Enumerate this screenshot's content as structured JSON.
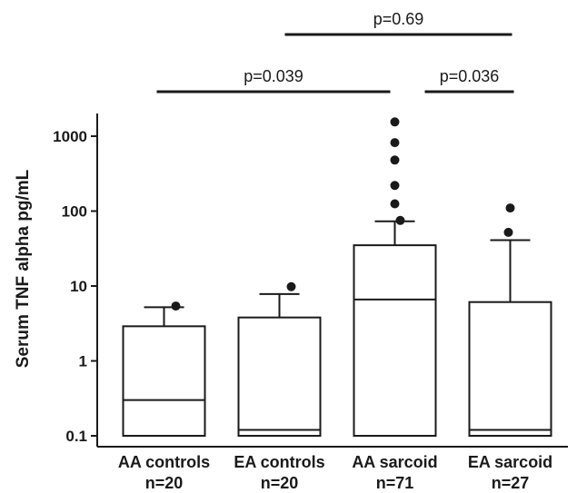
{
  "chart_data": {
    "type": "box",
    "ylabel": "Serum TNF alpha pg/mL",
    "yscale": "log",
    "ylim": [
      0.1,
      2000
    ],
    "yticks": [
      {
        "value": 1000,
        "label": "1000"
      },
      {
        "value": 100,
        "label": "100"
      },
      {
        "value": 10,
        "label": "10"
      },
      {
        "value": 1,
        "label": "1"
      },
      {
        "value": 0.1,
        "label": "0.1"
      }
    ],
    "groups": [
      {
        "name": "AA controls",
        "n": "n=20",
        "q1": 0.1,
        "median": 0.3,
        "q3": 2.9,
        "whisker_low": 0.1,
        "whisker_high": 5.2,
        "outliers": [
          5.4
        ]
      },
      {
        "name": "EA controls",
        "n": "n=20",
        "q1": 0.1,
        "median": 0.12,
        "q3": 3.8,
        "whisker_low": 0.1,
        "whisker_high": 7.8,
        "outliers": [
          9.8
        ]
      },
      {
        "name": "AA sarcoid",
        "n": "n=71",
        "q1": 0.1,
        "median": 6.6,
        "q3": 35,
        "whisker_low": 0.1,
        "whisker_high": 73,
        "outliers": [
          75,
          125,
          220,
          480,
          820,
          1550
        ]
      },
      {
        "name": "EA sarcoid",
        "n": "n=27",
        "q1": 0.1,
        "median": 0.12,
        "q3": 6.1,
        "whisker_low": 0.1,
        "whisker_high": 41,
        "outliers": [
          52,
          110
        ]
      }
    ],
    "comparisons": [
      {
        "from": 0,
        "to": 2,
        "label": "p=0.039",
        "level": 1
      },
      {
        "from": 2,
        "to": 3,
        "label": "p=0.036",
        "level": 1
      },
      {
        "from": 1,
        "to": 3,
        "label": "p=0.69",
        "level": 2
      }
    ]
  }
}
